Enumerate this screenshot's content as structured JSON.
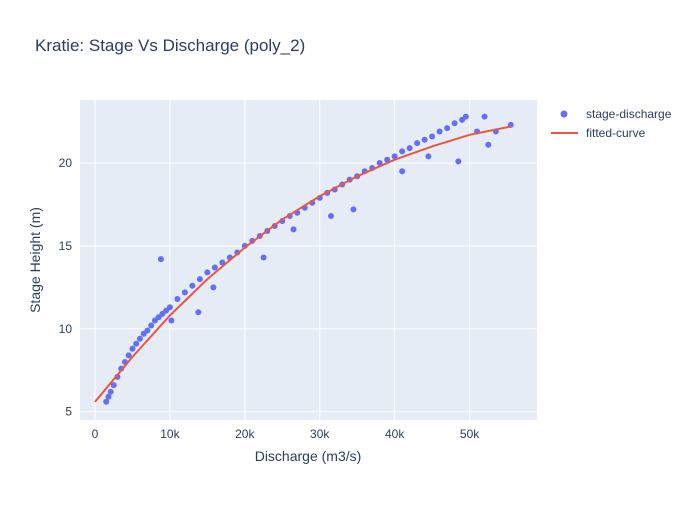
{
  "chart_data": {
    "type": "scatter",
    "title": "Kratie: Stage Vs Discharge (poly_2)",
    "xlabel": "Discharge (m3/s)",
    "ylabel": "Stage Height (m)",
    "xlim": [
      -2000,
      59000
    ],
    "ylim": [
      4.5,
      23.8
    ],
    "x_ticks": [
      0,
      10000,
      20000,
      30000,
      40000,
      50000
    ],
    "x_tick_labels": [
      "0",
      "10k",
      "20k",
      "30k",
      "40k",
      "50k"
    ],
    "y_ticks": [
      5,
      10,
      15,
      20
    ],
    "y_tick_labels": [
      "5",
      "10",
      "15",
      "20"
    ],
    "grid": true,
    "legend_position": "top-right",
    "colors": {
      "stage-discharge": "#636efa",
      "fitted-curve": "#ef553b",
      "plot_bg": "#e5ecf6",
      "text": "#2a3f5f"
    },
    "series": [
      {
        "name": "stage-discharge",
        "type": "scatter",
        "x": [
          1500,
          1800,
          2100,
          2500,
          3000,
          3500,
          4000,
          4500,
          5000,
          5500,
          6000,
          6500,
          7000,
          7500,
          8000,
          8500,
          9000,
          9500,
          10000,
          11000,
          12000,
          13000,
          14000,
          15000,
          16000,
          17000,
          18000,
          19000,
          20000,
          21000,
          22000,
          23000,
          24000,
          25000,
          26000,
          27000,
          28000,
          29000,
          30000,
          31000,
          32000,
          33000,
          34000,
          35000,
          36000,
          37000,
          38000,
          39000,
          40000,
          41000,
          42000,
          43000,
          44000,
          45000,
          46000,
          47000,
          48000,
          49000,
          49500,
          8800,
          10200,
          13800,
          15800,
          22500,
          26500,
          31500,
          34500,
          41000,
          44500,
          48500,
          51000,
          52000,
          52500,
          53500,
          55500
        ],
        "y": [
          5.6,
          5.9,
          6.2,
          6.6,
          7.1,
          7.6,
          8.0,
          8.4,
          8.8,
          9.1,
          9.4,
          9.7,
          9.9,
          10.2,
          10.5,
          10.7,
          10.9,
          11.1,
          11.3,
          11.8,
          12.2,
          12.6,
          13.0,
          13.4,
          13.7,
          14.0,
          14.3,
          14.6,
          15.0,
          15.3,
          15.6,
          15.9,
          16.2,
          16.5,
          16.8,
          17.0,
          17.3,
          17.6,
          17.9,
          18.2,
          18.4,
          18.7,
          19.0,
          19.2,
          19.5,
          19.7,
          20.0,
          20.2,
          20.4,
          20.7,
          20.9,
          21.2,
          21.4,
          21.6,
          21.9,
          22.1,
          22.4,
          22.6,
          22.8,
          14.2,
          10.5,
          11.0,
          12.5,
          14.3,
          16.0,
          16.8,
          17.2,
          19.5,
          20.4,
          20.1,
          21.9,
          22.8,
          21.1,
          21.9,
          22.3
        ]
      },
      {
        "name": "fitted-curve",
        "type": "line",
        "x": [
          0,
          5000,
          10000,
          15000,
          20000,
          25000,
          30000,
          35000,
          40000,
          45000,
          50000,
          55500
        ],
        "y": [
          5.6,
          8.3,
          10.8,
          13.0,
          14.9,
          16.6,
          18.0,
          19.2,
          20.2,
          21.0,
          21.7,
          22.2
        ]
      }
    ]
  }
}
